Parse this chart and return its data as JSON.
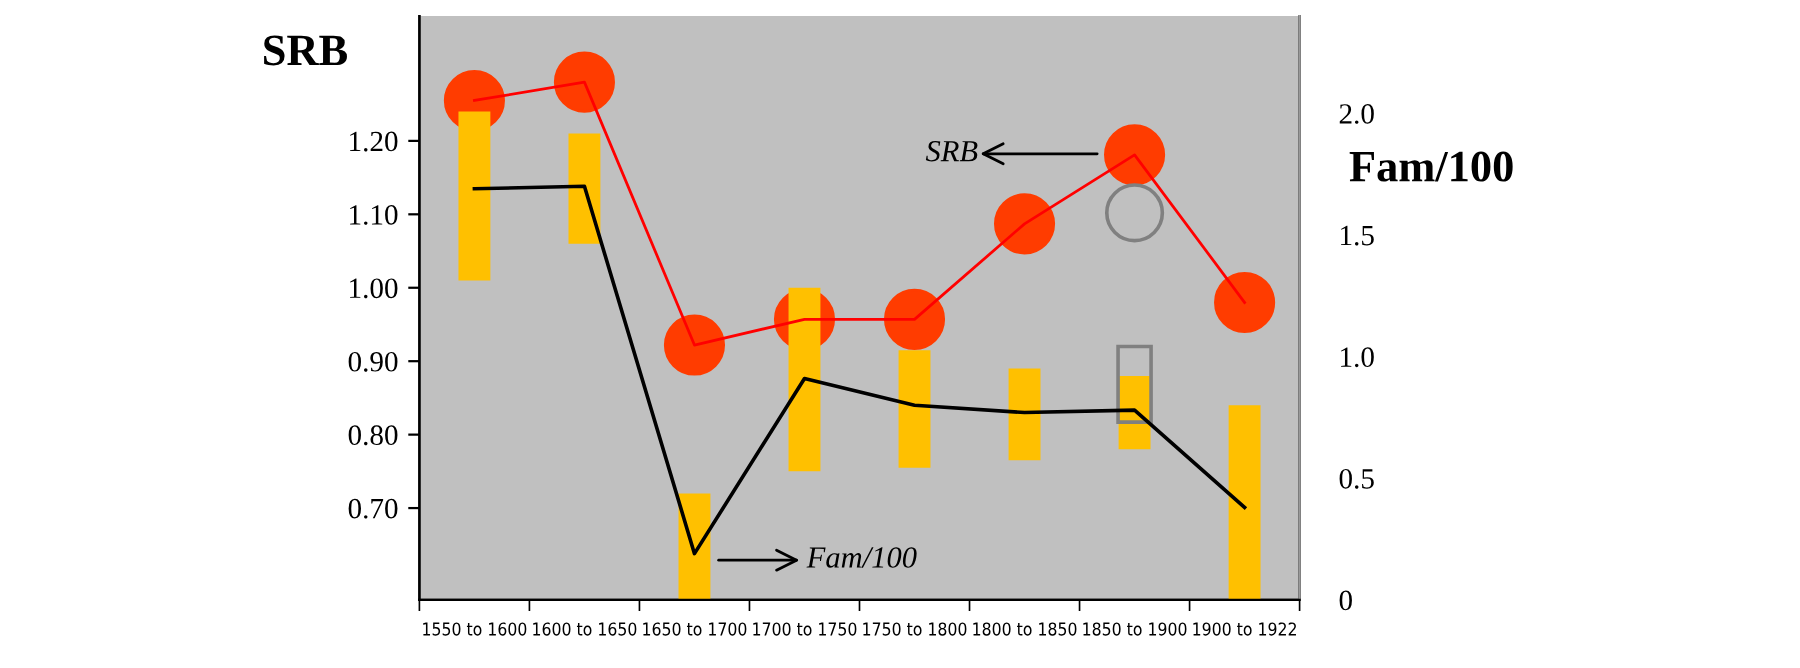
{
  "chart_data": {
    "type": "line",
    "ylabel": "SRB",
    "y2label": "Fam/100",
    "categories": [
      "1550 to 1600",
      "1600 to 1650",
      "1650 to 1700",
      "1700 to 1750",
      "1750 to 1800",
      "1800 to 1850",
      "1850 to 1900",
      "1900 to 1922"
    ],
    "series": [
      {
        "type": "bar",
        "color": "#ffc000",
        "base": [
          1.01,
          1.06,
          0.575,
          0.75,
          0.755,
          0.765,
          0.78,
          0.575
        ],
        "values": [
          0.23,
          0.15,
          0.145,
          0.25,
          0.16,
          0.125,
          0.1,
          0.265
        ]
      },
      {
        "color": "#000000",
        "axis": "y2",
        "marker": "none",
        "values": [
          1.69,
          1.7,
          0.19,
          0.91,
          0.8,
          0.77,
          0.78,
          0.38
        ]
      },
      {
        "color": "#ff3c00",
        "marker": "circle",
        "values": [
          1.255,
          1.28,
          0.922,
          0.957,
          0.957,
          1.087,
          1.181,
          0.98
        ]
      }
    ],
    "ylim": [
      0.575,
      1.37
    ],
    "yticks": [
      {
        "value": 0.7,
        "label": "0.70"
      },
      {
        "value": 0.8,
        "label": "0.80"
      },
      {
        "value": 0.9,
        "label": "0.90"
      },
      {
        "value": 1.0,
        "label": "1.00"
      },
      {
        "value": 1.1,
        "label": "1.10"
      },
      {
        "value": 1.2,
        "label": "1.20"
      }
    ],
    "y2lim": [
      0,
      2.4
    ],
    "y2ticks": [
      0,
      0.5,
      {
        "value": 1.0,
        "label": "1.0"
      },
      1.5,
      {
        "value": 2.0,
        "label": "2.0"
      }
    ],
    "annotations": [
      "SRB",
      "Fam/100"
    ],
    "grid": false,
    "legend": false
  }
}
